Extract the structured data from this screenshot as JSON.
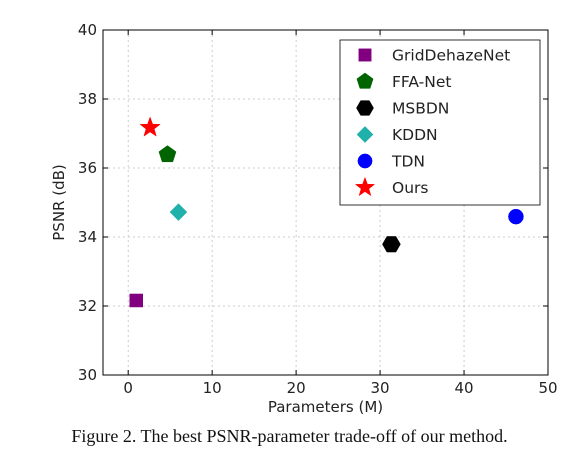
{
  "chart_data": {
    "type": "scatter",
    "title": "",
    "xlabel": "Parameters (M)",
    "ylabel": "PSNR (dB)",
    "xlim": [
      -3,
      50
    ],
    "ylim": [
      30,
      40
    ],
    "xticks": [
      0,
      10,
      20,
      30,
      40,
      50
    ],
    "yticks": [
      30,
      32,
      34,
      36,
      38,
      40
    ],
    "grid": true,
    "legend_position": "top-right",
    "series": [
      {
        "name": "GridDehazeNet",
        "x": 0.96,
        "y": 32.16,
        "marker": "square",
        "color": "#800080"
      },
      {
        "name": "FFA-Net",
        "x": 4.68,
        "y": 36.39,
        "marker": "pentagon",
        "color": "#006400"
      },
      {
        "name": "MSBDN",
        "x": 31.35,
        "y": 33.79,
        "marker": "hexagon",
        "color": "#000000"
      },
      {
        "name": "KDDN",
        "x": 5.99,
        "y": 34.72,
        "marker": "diamond",
        "color": "#20b2aa"
      },
      {
        "name": "TDN",
        "x": 46.18,
        "y": 34.59,
        "marker": "circle",
        "color": "#0000ff"
      },
      {
        "name": "Ours",
        "x": 2.61,
        "y": 37.17,
        "marker": "star",
        "color": "#ff0000"
      }
    ]
  },
  "caption": "Figure 2. The best PSNR-parameter trade-off of our method."
}
